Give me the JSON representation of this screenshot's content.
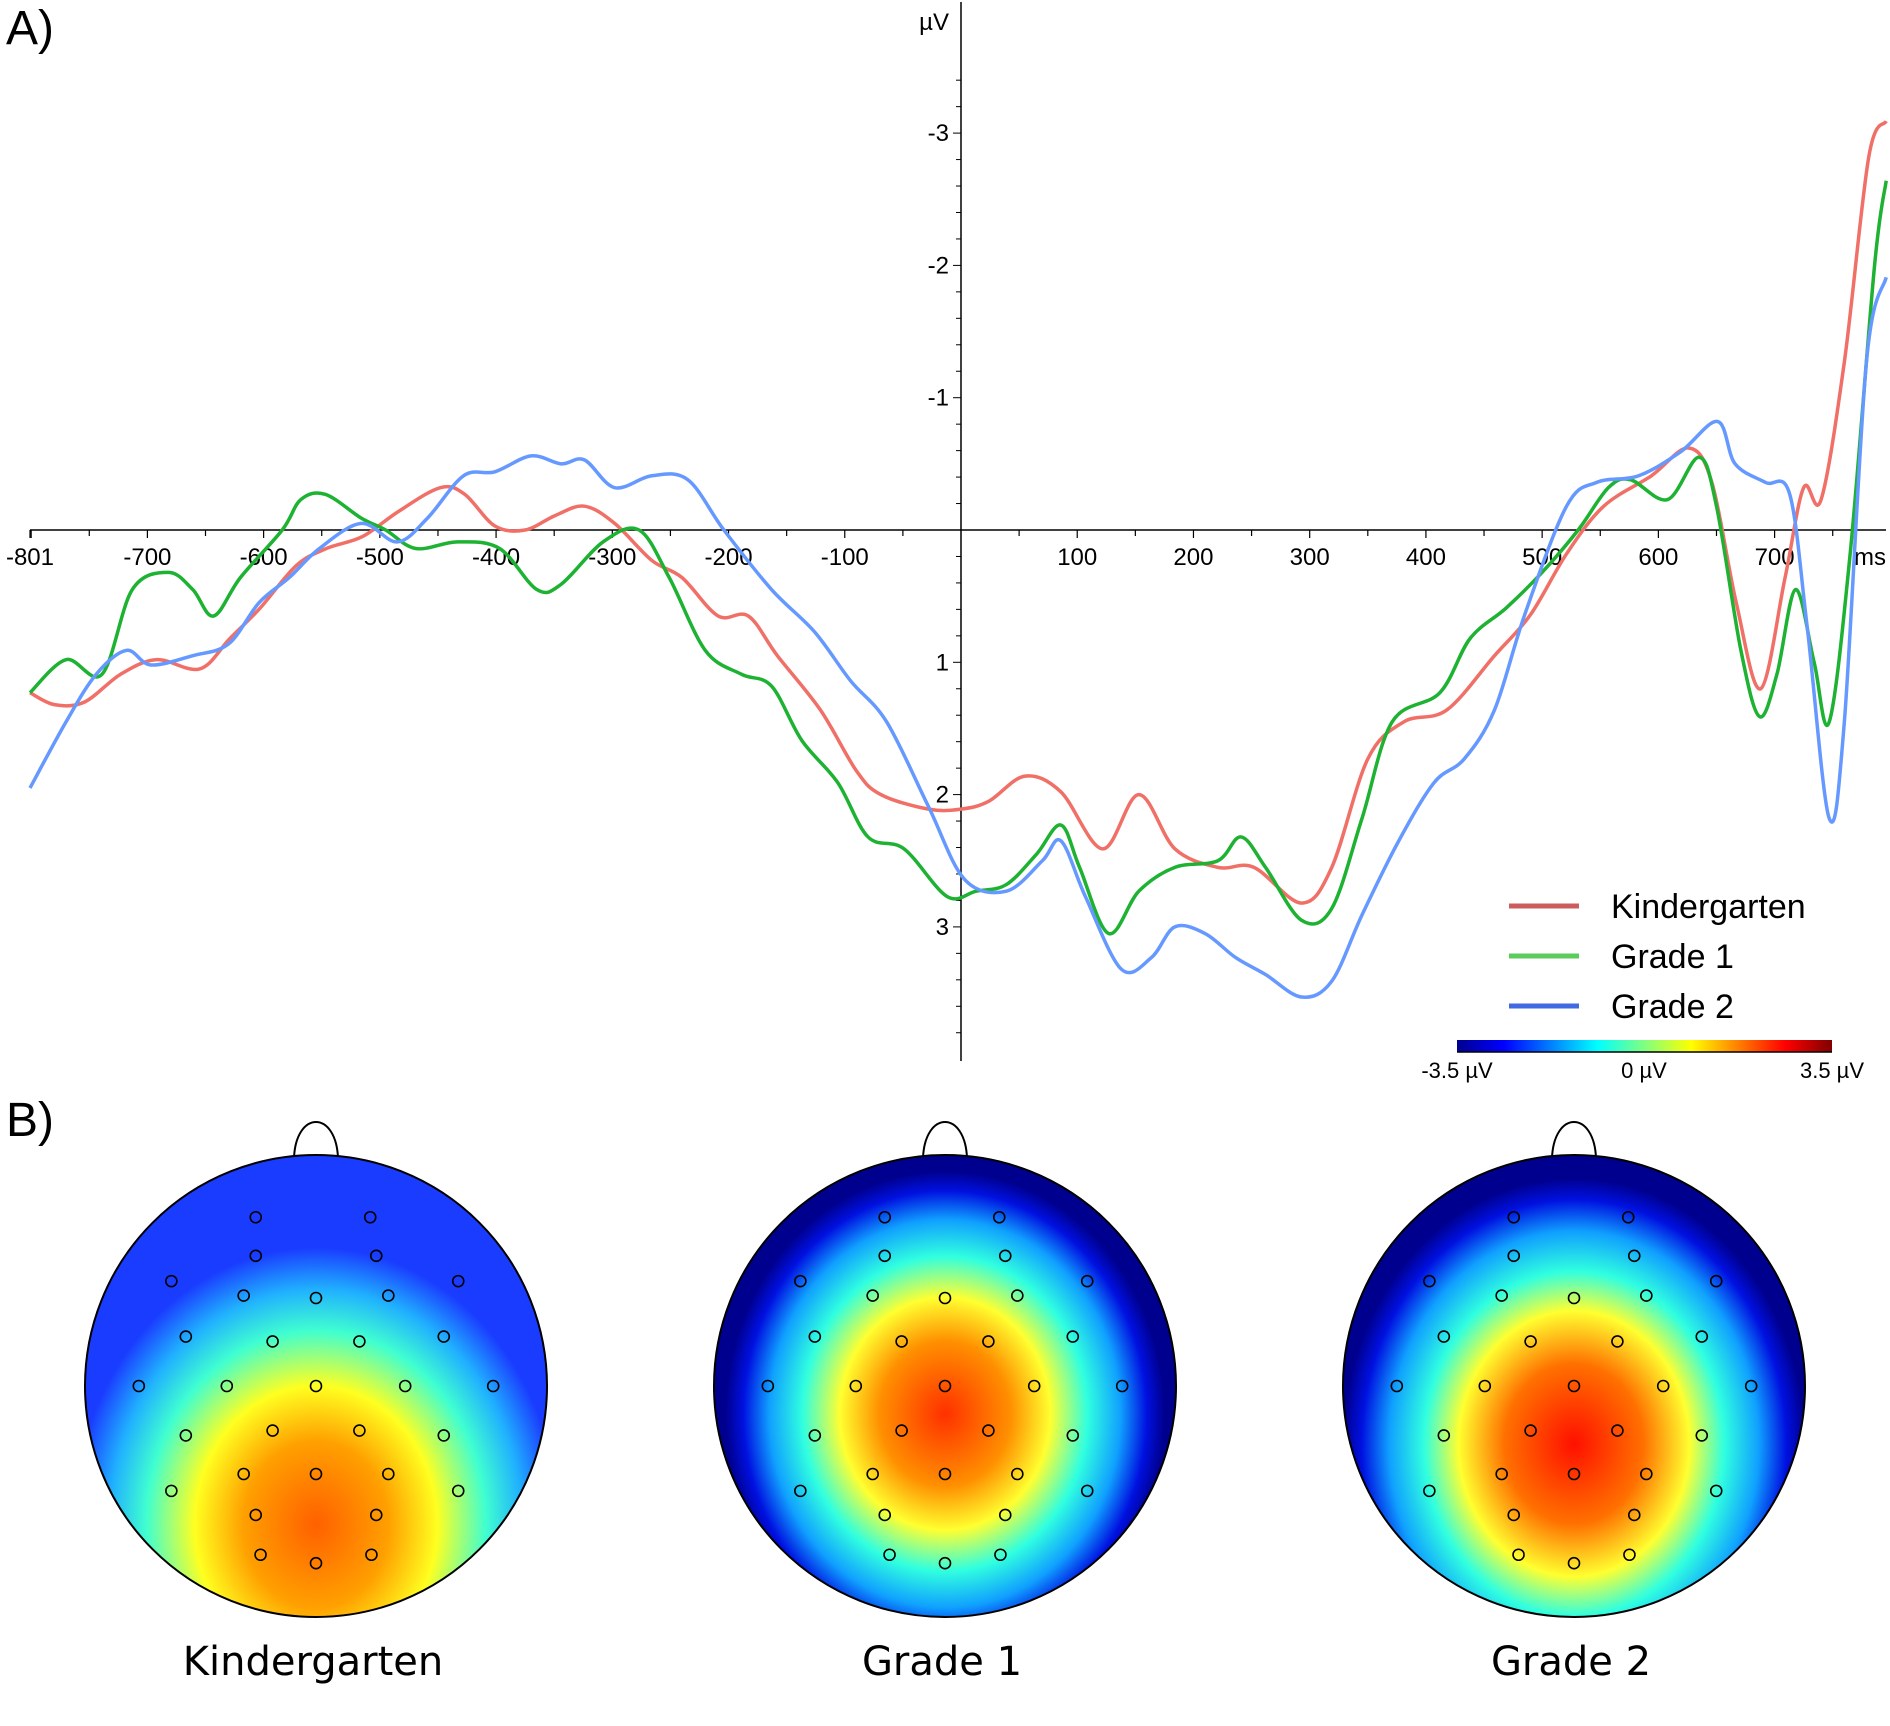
{
  "panels": {
    "a": "A)",
    "b": "B)"
  },
  "chart_data": {
    "type": "line",
    "title": "",
    "xlabel": "ms",
    "ylabel": "µV",
    "xlim": [
      -801,
      796
    ],
    "ylim": [
      -3.5,
      4
    ],
    "y_inverted": true,
    "grid": false,
    "legend_placement": "bottom-right",
    "x_tick_labels": [
      "-801",
      "-700",
      "-600",
      "-500",
      "-400",
      "-300",
      "-200",
      "-100",
      "100",
      "200",
      "300",
      "400",
      "500",
      "600",
      "700"
    ],
    "x_ticks": [
      -801,
      -700,
      -600,
      -500,
      -400,
      -300,
      -200,
      -100,
      100,
      200,
      300,
      400,
      500,
      600,
      700
    ],
    "y_tick_labels": [
      "-3",
      "-2",
      "-1",
      "1",
      "2",
      "3"
    ],
    "y_ticks": [
      -3,
      -2,
      -1,
      1,
      2,
      3
    ],
    "series": [
      {
        "name": "Kindergarten",
        "color": "#f07068",
        "legend_color": "#cd5c5c",
        "x": [
          -801,
          -780,
          -754,
          -723,
          -692,
          -655,
          -629,
          -603,
          -572,
          -546,
          -515,
          -484,
          -448,
          -427,
          -401,
          -375,
          -349,
          -324,
          -298,
          -266,
          -240,
          -209,
          -183,
          -158,
          -121,
          -90,
          -69,
          -28,
          0,
          24,
          55,
          86,
          122,
          153,
          184,
          221,
          252,
          293,
          319,
          350,
          381,
          418,
          459,
          490,
          521,
          553,
          594,
          626,
          646,
          667,
          688,
          709,
          725,
          740,
          760,
          781,
          796
        ],
        "y": [
          1.23,
          1.32,
          1.3,
          1.09,
          0.98,
          1.05,
          0.82,
          0.59,
          0.27,
          0.14,
          0.05,
          -0.14,
          -0.32,
          -0.27,
          -0.03,
          0,
          -0.11,
          -0.18,
          -0.05,
          0.23,
          0.36,
          0.65,
          0.65,
          0.95,
          1.36,
          1.82,
          2.0,
          2.11,
          2.11,
          2.05,
          1.86,
          1.98,
          2.41,
          2.0,
          2.41,
          2.55,
          2.55,
          2.82,
          2.55,
          1.73,
          1.45,
          1.36,
          0.95,
          0.64,
          0.18,
          -0.18,
          -0.41,
          -0.62,
          -0.36,
          0.55,
          1.2,
          0.36,
          -0.32,
          -0.23,
          -1.27,
          -2.82,
          -3.09
        ]
      },
      {
        "name": "Grade 1",
        "color": "#1db232",
        "legend_color": "#5ccb5c",
        "x": [
          -801,
          -770,
          -739,
          -713,
          -682,
          -661,
          -643,
          -620,
          -584,
          -568,
          -547,
          -516,
          -495,
          -469,
          -433,
          -397,
          -365,
          -344,
          -308,
          -277,
          -251,
          -220,
          -189,
          -163,
          -137,
          -106,
          -80,
          -49,
          -12,
          13,
          39,
          65,
          86,
          102,
          127,
          153,
          184,
          221,
          241,
          262,
          293,
          319,
          345,
          371,
          412,
          438,
          469,
          500,
          531,
          557,
          576,
          608,
          635,
          650,
          671,
          687,
          702,
          718,
          734,
          747,
          765,
          786,
          796
        ],
        "y": [
          1.23,
          0.98,
          1.09,
          0.45,
          0.32,
          0.45,
          0.65,
          0.36,
          0,
          -0.23,
          -0.27,
          -0.09,
          0,
          0.14,
          0.09,
          0.14,
          0.45,
          0.41,
          0.09,
          0,
          0.36,
          0.91,
          1.09,
          1.18,
          1.59,
          1.91,
          2.32,
          2.41,
          2.77,
          2.73,
          2.68,
          2.45,
          2.23,
          2.55,
          3.05,
          2.73,
          2.55,
          2.5,
          2.32,
          2.55,
          2.95,
          2.86,
          2.18,
          1.45,
          1.23,
          0.82,
          0.59,
          0.32,
          0,
          -0.32,
          -0.38,
          -0.23,
          -0.55,
          -0.18,
          0.91,
          1.41,
          1.09,
          0.45,
          1.0,
          1.45,
          0.18,
          -2.0,
          -2.64
        ]
      },
      {
        "name": "Grade 2",
        "color": "#6699ff",
        "legend_color": "#4169e1",
        "x": [
          -801,
          -770,
          -744,
          -718,
          -697,
          -661,
          -630,
          -604,
          -578,
          -552,
          -516,
          -485,
          -459,
          -428,
          -401,
          -370,
          -344,
          -324,
          -298,
          -266,
          -235,
          -204,
          -163,
          -126,
          -95,
          -64,
          -28,
          3,
          39,
          70,
          86,
          107,
          138,
          164,
          184,
          210,
          236,
          262,
          293,
          319,
          345,
          376,
          407,
          433,
          459,
          485,
          521,
          547,
          583,
          619,
          651,
          666,
          692,
          713,
          728,
          747,
          760,
          779,
          796
        ],
        "y": [
          1.95,
          1.45,
          1.09,
          0.91,
          1.02,
          0.95,
          0.86,
          0.55,
          0.36,
          0.14,
          -0.05,
          0.09,
          -0.09,
          -0.41,
          -0.44,
          -0.56,
          -0.5,
          -0.53,
          -0.32,
          -0.41,
          -0.38,
          0,
          0.45,
          0.77,
          1.14,
          1.45,
          2.09,
          2.64,
          2.73,
          2.5,
          2.35,
          2.77,
          3.32,
          3.23,
          3.0,
          3.05,
          3.23,
          3.36,
          3.53,
          3.41,
          2.91,
          2.36,
          1.91,
          1.73,
          1.36,
          0.64,
          -0.18,
          -0.36,
          -0.41,
          -0.59,
          -0.82,
          -0.5,
          -0.36,
          -0.27,
          0.73,
          2.18,
          1.45,
          -1.27,
          -1.91
        ]
      }
    ],
    "colorbar": {
      "min_label": "-3.5 µV",
      "mid_label": "0 µV",
      "max_label": "3.5 µV",
      "min": -3.5,
      "max": 3.5,
      "colormap": "jet"
    }
  },
  "topomaps": [
    {
      "label": "Kindergarten",
      "peak_uV": 2.5,
      "peak_position": "posterior-central"
    },
    {
      "label": "Grade 1",
      "peak_uV": 3.0,
      "peak_position": "central"
    },
    {
      "label": "Grade 2",
      "peak_uV": 3.3,
      "peak_position": "central"
    }
  ]
}
